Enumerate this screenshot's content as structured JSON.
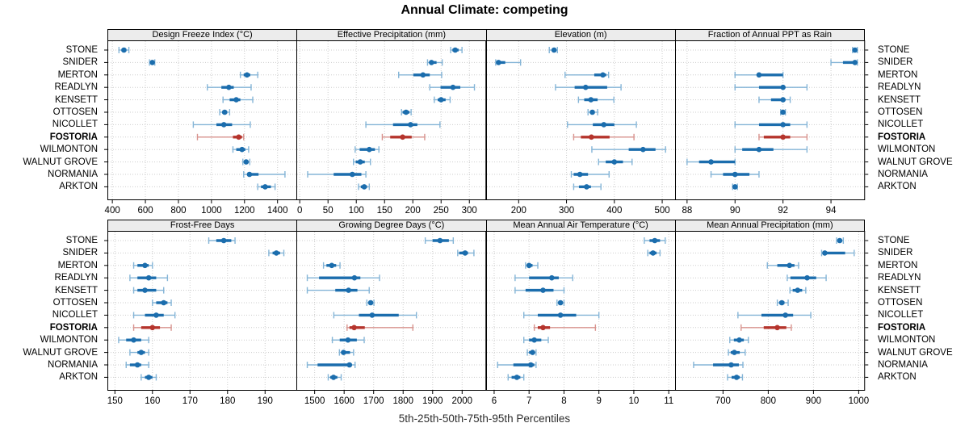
{
  "title": "Annual Climate: competing",
  "caption": "5th-25th-50th-75th-95th Percentiles",
  "highlight_station": "FOSTORIA",
  "stations": [
    "STONE",
    "SNIDER",
    "MERTON",
    "READLYN",
    "KENSETT",
    "OTTOSEN",
    "NICOLLET",
    "FOSTORIA",
    "WILMONTON",
    "WALNUT GROVE",
    "NORMANIA",
    "ARKTON"
  ],
  "percentiles": [
    5,
    25,
    50,
    75,
    95
  ],
  "colors": {
    "blue": "#1b6dad",
    "blue_light": "#85b5d7",
    "red": "#b5342c",
    "red_light": "#d8938e",
    "strip_bg": "#ececec",
    "grid": "#cdcdcd",
    "border": "#000000"
  },
  "chart_data": [
    {
      "type": "scatter",
      "subtype": "percentile-interval-dotplot",
      "title": "Design Freeze Index (°C)",
      "row": 0,
      "col": 0,
      "xlim": [
        370,
        1520
      ],
      "ticks": [
        400,
        600,
        800,
        1000,
        1200,
        1400
      ],
      "values": [
        [
          440,
          455,
          470,
          485,
          500
        ],
        [
          625,
          635,
          642,
          650,
          657
        ],
        [
          1175,
          1195,
          1215,
          1235,
          1280
        ],
        [
          975,
          1060,
          1105,
          1135,
          1240
        ],
        [
          1070,
          1110,
          1150,
          1175,
          1250
        ],
        [
          1050,
          1065,
          1080,
          1095,
          1110
        ],
        [
          890,
          1030,
          1075,
          1125,
          1235
        ],
        [
          915,
          1130,
          1165,
          1185,
          1195
        ],
        [
          1130,
          1150,
          1185,
          1205,
          1225
        ],
        [
          1190,
          1200,
          1210,
          1222,
          1232
        ],
        [
          1195,
          1220,
          1230,
          1285,
          1445
        ],
        [
          1280,
          1300,
          1325,
          1360,
          1385
        ]
      ]
    },
    {
      "type": "scatter",
      "subtype": "percentile-interval-dotplot",
      "title": "Effective Precipitation (mm)",
      "row": 0,
      "col": 1,
      "xlim": [
        -6,
        330
      ],
      "ticks": [
        0,
        50,
        100,
        150,
        200,
        250,
        300
      ],
      "values": [
        [
          267,
          270,
          275,
          281,
          287
        ],
        [
          226,
          230,
          233,
          242,
          252
        ],
        [
          175,
          201,
          218,
          230,
          251
        ],
        [
          230,
          249,
          271,
          284,
          309
        ],
        [
          238,
          244,
          250,
          258,
          266
        ],
        [
          180,
          182,
          188,
          194,
          197
        ],
        [
          117,
          165,
          196,
          208,
          248
        ],
        [
          146,
          160,
          182,
          198,
          221
        ],
        [
          98,
          106,
          123,
          133,
          140
        ],
        [
          95,
          99,
          107,
          115,
          125
        ],
        [
          14,
          60,
          93,
          109,
          117
        ],
        [
          104,
          108,
          114,
          119,
          123
        ]
      ]
    },
    {
      "type": "scatter",
      "subtype": "percentile-interval-dotplot",
      "title": "Elevation (m)",
      "row": 0,
      "col": 2,
      "xlim": [
        132,
        529
      ],
      "ticks": [
        200,
        300,
        400,
        500
      ],
      "values": [
        [
          264,
          270,
          274,
          278,
          281
        ],
        [
          152,
          155,
          158,
          172,
          204
        ],
        [
          297,
          358,
          376,
          383,
          388
        ],
        [
          277,
          317,
          340,
          385,
          414
        ],
        [
          325,
          337,
          351,
          365,
          399
        ],
        [
          345,
          349,
          354,
          359,
          365
        ],
        [
          302,
          355,
          378,
          400,
          446
        ],
        [
          315,
          330,
          352,
          390,
          441
        ],
        [
          353,
          430,
          460,
          486,
          507
        ],
        [
          367,
          382,
          400,
          418,
          437
        ],
        [
          310,
          315,
          328,
          345,
          389
        ],
        [
          315,
          326,
          342,
          351,
          372
        ]
      ]
    },
    {
      "type": "scatter",
      "subtype": "percentile-interval-dotplot",
      "title": "Fraction of Annual PPT as Rain",
      "row": 0,
      "col": 3,
      "xlim": [
        87.5,
        95.42
      ],
      "ticks": [
        88,
        90,
        92,
        94
      ],
      "values": [
        [
          94.9,
          95,
          95,
          95,
          95.1
        ],
        [
          94,
          94.5,
          95,
          95,
          95.1
        ],
        [
          90,
          91,
          91,
          92,
          92
        ],
        [
          90,
          91,
          92,
          92,
          93
        ],
        [
          91,
          91.5,
          92,
          92,
          92.3
        ],
        [
          91.9,
          92,
          92,
          92,
          92.1
        ],
        [
          90,
          91,
          92,
          92.3,
          93
        ],
        [
          91,
          91.2,
          92,
          92.3,
          93
        ],
        [
          90,
          90.3,
          91,
          91.6,
          93
        ],
        [
          88,
          88.5,
          89,
          90,
          90
        ],
        [
          89,
          89.5,
          90,
          90.6,
          91
        ],
        [
          89.9,
          90,
          90,
          90,
          90.1
        ]
      ]
    },
    {
      "type": "scatter",
      "subtype": "percentile-interval-dotplot",
      "title": "Frost-Free Days",
      "row": 1,
      "col": 0,
      "xlim": [
        148,
        198.6
      ],
      "ticks": [
        150,
        160,
        170,
        180,
        190
      ],
      "values": [
        [
          175,
          177,
          179,
          181,
          182
        ],
        [
          191,
          192,
          193,
          194,
          195
        ],
        [
          155,
          156,
          158,
          159,
          160
        ],
        [
          154,
          156,
          159,
          161,
          164
        ],
        [
          155,
          156,
          158,
          161,
          163
        ],
        [
          160,
          161,
          163,
          164,
          165
        ],
        [
          155,
          158,
          161,
          163,
          166
        ],
        [
          155,
          157,
          160,
          162,
          165
        ],
        [
          151,
          153,
          155,
          157,
          159
        ],
        [
          154,
          156,
          157,
          158,
          159
        ],
        [
          153,
          154,
          156,
          157,
          159
        ],
        [
          157,
          158,
          159,
          160,
          161
        ]
      ]
    },
    {
      "type": "scatter",
      "subtype": "percentile-interval-dotplot",
      "title": "Growing Degree Days (°C)",
      "row": 1,
      "col": 1,
      "xlim": [
        1438,
        2082
      ],
      "ticks": [
        1500,
        1600,
        1700,
        1800,
        1900,
        2000
      ],
      "values": [
        [
          1875,
          1900,
          1925,
          1955,
          1970
        ],
        [
          1985,
          1990,
          2010,
          2020,
          2040
        ],
        [
          1530,
          1540,
          1558,
          1573,
          1586
        ],
        [
          1475,
          1515,
          1635,
          1655,
          1720
        ],
        [
          1475,
          1570,
          1615,
          1645,
          1685
        ],
        [
          1677,
          1683,
          1690,
          1696,
          1701
        ],
        [
          1565,
          1650,
          1695,
          1785,
          1845
        ],
        [
          1610,
          1618,
          1634,
          1670,
          1833
        ],
        [
          1560,
          1585,
          1613,
          1643,
          1668
        ],
        [
          1584,
          1590,
          1598,
          1620,
          1632
        ],
        [
          1475,
          1510,
          1618,
          1626,
          1637
        ],
        [
          1546,
          1553,
          1564,
          1577,
          1590
        ]
      ]
    },
    {
      "type": "scatter",
      "subtype": "percentile-interval-dotplot",
      "title": "Mean Annual Air Temperature (°C)",
      "row": 1,
      "col": 2,
      "xlim": [
        5.77,
        11.21
      ],
      "ticks": [
        6,
        7,
        8,
        9,
        10,
        11
      ],
      "values": [
        [
          10.3,
          10.45,
          10.6,
          10.75,
          10.9
        ],
        [
          10.4,
          10.45,
          10.55,
          10.65,
          10.75
        ],
        [
          6.9,
          6.95,
          7.0,
          7.1,
          7.25
        ],
        [
          6.6,
          7.0,
          7.65,
          7.85,
          8.25
        ],
        [
          6.6,
          6.9,
          7.4,
          7.7,
          8.0
        ],
        [
          7.8,
          7.85,
          7.9,
          7.95,
          8.0
        ],
        [
          6.85,
          7.25,
          7.9,
          8.35,
          9.0
        ],
        [
          7.15,
          7.25,
          7.4,
          7.6,
          8.9
        ],
        [
          6.85,
          7.0,
          7.15,
          7.35,
          7.55
        ],
        [
          6.95,
          7.0,
          7.1,
          7.15,
          7.2
        ],
        [
          6.1,
          6.55,
          7.05,
          7.15,
          7.2
        ],
        [
          6.4,
          6.5,
          6.65,
          6.75,
          6.85
        ]
      ]
    },
    {
      "type": "scatter",
      "subtype": "percentile-interval-dotplot",
      "title": "Mean Annual Precipitation (mm)",
      "row": 1,
      "col": 3,
      "xlim": [
        594,
        1014
      ],
      "ticks": [
        700,
        800,
        900,
        1000
      ],
      "values": [
        [
          951,
          955,
          958,
          962,
          966
        ],
        [
          918,
          921,
          925,
          970,
          990
        ],
        [
          798,
          820,
          847,
          858,
          867
        ],
        [
          842,
          849,
          886,
          906,
          928
        ],
        [
          848,
          854,
          865,
          875,
          883
        ],
        [
          820,
          824,
          830,
          836,
          844
        ],
        [
          733,
          785,
          838,
          855,
          894
        ],
        [
          740,
          790,
          820,
          840,
          851
        ],
        [
          715,
          724,
          736,
          746,
          756
        ],
        [
          712,
          717,
          725,
          737,
          749
        ],
        [
          635,
          678,
          718,
          735,
          744
        ],
        [
          710,
          719,
          730,
          737,
          743
        ]
      ]
    }
  ]
}
